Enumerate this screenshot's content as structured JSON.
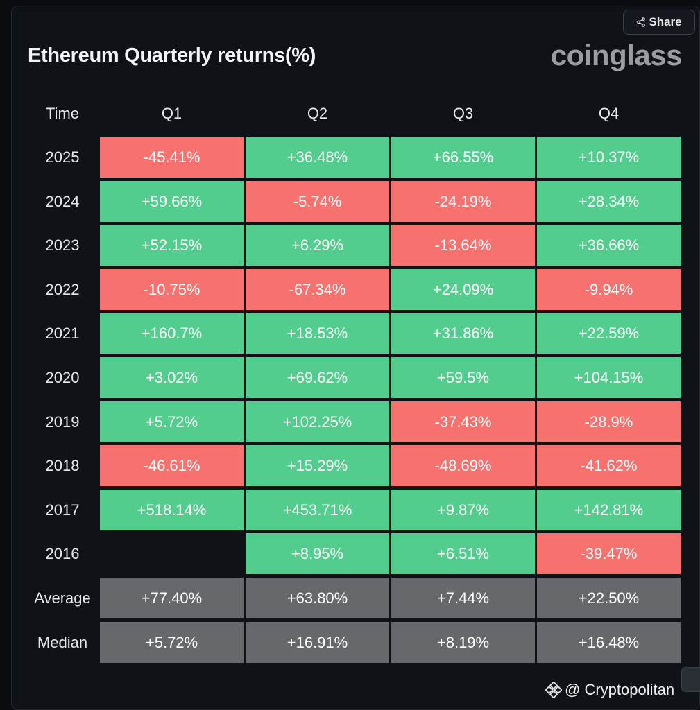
{
  "header": {
    "share_label": "Share",
    "brand": "coinglass"
  },
  "watermark": {
    "text": "@ Cryptopolitan"
  },
  "chart_data": {
    "type": "table",
    "title": "Ethereum Quarterly returns(%)",
    "columns": [
      "Time",
      "Q1",
      "Q2",
      "Q3",
      "Q4"
    ],
    "rows": [
      {
        "label": "2025",
        "kind": "year",
        "values": [
          "-45.41%",
          "+36.48%",
          "+66.55%",
          "+10.37%"
        ]
      },
      {
        "label": "2024",
        "kind": "year",
        "values": [
          "+59.66%",
          "-5.74%",
          "-24.19%",
          "+28.34%"
        ]
      },
      {
        "label": "2023",
        "kind": "year",
        "values": [
          "+52.15%",
          "+6.29%",
          "-13.64%",
          "+36.66%"
        ]
      },
      {
        "label": "2022",
        "kind": "year",
        "values": [
          "-10.75%",
          "-67.34%",
          "+24.09%",
          "-9.94%"
        ]
      },
      {
        "label": "2021",
        "kind": "year",
        "values": [
          "+160.7%",
          "+18.53%",
          "+31.86%",
          "+22.59%"
        ]
      },
      {
        "label": "2020",
        "kind": "year",
        "values": [
          "+3.02%",
          "+69.62%",
          "+59.5%",
          "+104.15%"
        ]
      },
      {
        "label": "2019",
        "kind": "year",
        "values": [
          "+5.72%",
          "+102.25%",
          "-37.43%",
          "-28.9%"
        ]
      },
      {
        "label": "2018",
        "kind": "year",
        "values": [
          "-46.61%",
          "+15.29%",
          "-48.69%",
          "-41.62%"
        ]
      },
      {
        "label": "2017",
        "kind": "year",
        "values": [
          "+518.14%",
          "+453.71%",
          "+9.87%",
          "+142.81%"
        ]
      },
      {
        "label": "2016",
        "kind": "year",
        "values": [
          "",
          "+8.95%",
          "+6.51%",
          "-39.47%"
        ]
      },
      {
        "label": "Average",
        "kind": "summary",
        "values": [
          "+77.40%",
          "+63.80%",
          "+7.44%",
          "+22.50%"
        ]
      },
      {
        "label": "Median",
        "kind": "summary",
        "values": [
          "+5.72%",
          "+16.91%",
          "+8.19%",
          "+16.48%"
        ]
      }
    ],
    "colors": {
      "positive": "#52cd8d",
      "negative": "#f7716f",
      "summary": "#67686b"
    }
  }
}
